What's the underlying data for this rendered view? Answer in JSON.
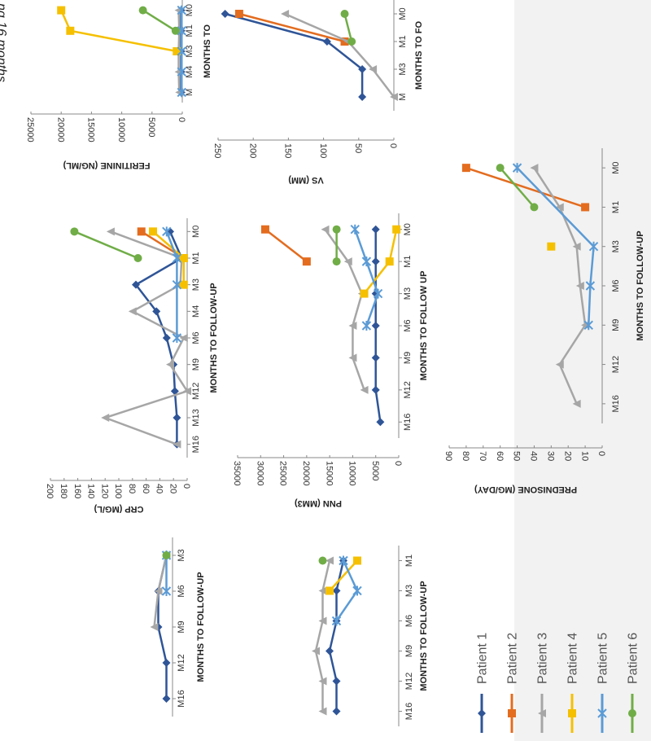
{
  "caption": "ng 16 months.",
  "colors": {
    "Patient 1": "#2f5597",
    "Patient 2": "#e36c1f",
    "Patient 3": "#a6a6a6",
    "Patient 4": "#f5c000",
    "Patient 5": "#5b9bd5",
    "Patient 6": "#70ad47"
  },
  "legend": [
    "Patient 1",
    "Patient 2",
    "Patient 3",
    "Patient 4",
    "Patient 5",
    "Patient 6"
  ],
  "chart_data": [
    {
      "id": "crp",
      "type": "line",
      "ylabel": "CRP (MG/L)",
      "xlabel": "MONTHS TO FOLLOW-UP",
      "categories": [
        "M0",
        "M1",
        "M3",
        "M4",
        "M6",
        "M9",
        "M12",
        "M13",
        "M16"
      ],
      "ylim": [
        0,
        200
      ],
      "yticks": [
        0,
        20,
        40,
        60,
        80,
        100,
        120,
        140,
        160,
        180,
        200
      ],
      "series": [
        {
          "name": "Patient 1",
          "values": [
            25,
            8,
            75,
            45,
            30,
            20,
            18,
            15,
            15
          ]
        },
        {
          "name": "Patient 2",
          "values": [
            67,
            5,
            null,
            null,
            null,
            null,
            null,
            null,
            null
          ]
        },
        {
          "name": "Patient 3",
          "values": [
            112,
            8,
            10,
            80,
            5,
            25,
            0,
            120,
            15
          ]
        },
        {
          "name": "Patient 4",
          "values": [
            50,
            5,
            5,
            null,
            null,
            null,
            null,
            null,
            null
          ]
        },
        {
          "name": "Patient 5",
          "values": [
            30,
            15,
            15,
            null,
            15,
            null,
            null,
            null,
            null
          ]
        },
        {
          "name": "Patient 6",
          "values": [
            165,
            72,
            null,
            null,
            null,
            null,
            null,
            null,
            null
          ]
        }
      ]
    },
    {
      "id": "ferritin",
      "type": "line",
      "ylabel": "FERITININE (NG/ML)",
      "xlabel": "MONTHS TO",
      "categories": [
        "M0",
        "M1",
        "M3",
        "M4",
        "M"
      ],
      "ylim": [
        0,
        25000
      ],
      "yticks": [
        0,
        5000,
        10000,
        15000,
        20000,
        25000
      ],
      "series": [
        {
          "name": "Patient 1",
          "values": [
            200,
            200,
            200,
            200,
            200
          ]
        },
        {
          "name": "Patient 3",
          "values": [
            600,
            500,
            600,
            600,
            500
          ]
        },
        {
          "name": "Patient 4",
          "values": [
            20000,
            18500,
            900,
            null,
            null
          ]
        },
        {
          "name": "Patient 5",
          "values": [
            100,
            100,
            100,
            100,
            100
          ]
        },
        {
          "name": "Patient 6",
          "values": [
            6500,
            1100,
            null,
            null,
            null
          ]
        }
      ]
    },
    {
      "id": "pnn",
      "type": "line",
      "ylabel": "PNN (MM3)",
      "xlabel": "MONTHS TO FOLLOW UP",
      "categories": [
        "M0",
        "M1",
        "M3",
        "M6",
        "M9",
        "M12",
        "M16"
      ],
      "ylim": [
        0,
        35000
      ],
      "yticks": [
        0,
        5000,
        10000,
        15000,
        20000,
        25000,
        30000,
        35000
      ],
      "series": [
        {
          "name": "Patient 1",
          "values": [
            5000,
            5000,
            5000,
            5000,
            5000,
            5000,
            4000
          ]
        },
        {
          "name": "Patient 2",
          "values": [
            29000,
            20000,
            null,
            null,
            null,
            null,
            null
          ]
        },
        {
          "name": "Patient 3",
          "values": [
            16000,
            11000,
            8000,
            10000,
            10000,
            7500,
            null
          ]
        },
        {
          "name": "Patient 4",
          "values": [
            500,
            2000,
            7500,
            null,
            null,
            null,
            null
          ]
        },
        {
          "name": "Patient 5",
          "values": [
            9500,
            7000,
            4500,
            7000,
            null,
            null,
            null
          ]
        },
        {
          "name": "Patient 6",
          "values": [
            13500,
            13500,
            null,
            null,
            null,
            null,
            null
          ]
        }
      ]
    },
    {
      "id": "vs",
      "type": "line",
      "ylabel": "VS (MM)",
      "xlabel": "MONTHS TO FO",
      "categories": [
        "M0",
        "M1",
        "M3",
        "M"
      ],
      "ylim": [
        0,
        250
      ],
      "yticks": [
        0,
        50,
        100,
        150,
        200,
        250
      ],
      "series": [
        {
          "name": "Patient 1",
          "values": [
            240,
            95,
            45,
            45
          ]
        },
        {
          "name": "Patient 2",
          "values": [
            220,
            70,
            null,
            null
          ]
        },
        {
          "name": "Patient 3",
          "values": [
            155,
            65,
            30,
            0
          ]
        },
        {
          "name": "Patient 6",
          "values": [
            70,
            60,
            null,
            null
          ]
        }
      ]
    },
    {
      "id": "pred",
      "type": "line",
      "ylabel": "PREDNISONE (MG/DAY)",
      "xlabel": "MONTHS TO FOLLOW-UP",
      "categories": [
        "M0",
        "M1",
        "M3",
        "M6",
        "M9",
        "M12",
        "M16"
      ],
      "ylim": [
        0,
        90
      ],
      "yticks": [
        0,
        10,
        20,
        30,
        40,
        50,
        60,
        70,
        80,
        90
      ],
      "series": [
        {
          "name": "Patient 2",
          "values": [
            80,
            10,
            null,
            null,
            null,
            null,
            null
          ]
        },
        {
          "name": "Patient 3",
          "values": [
            40,
            25,
            15,
            13,
            10,
            25,
            15
          ]
        },
        {
          "name": "Patient 4",
          "values": [
            null,
            null,
            30,
            null,
            null,
            null,
            null
          ]
        },
        {
          "name": "Patient 5",
          "values": [
            50,
            null,
            5,
            7,
            8,
            null,
            null
          ]
        },
        {
          "name": "Patient 6",
          "values": [
            60,
            40,
            null,
            null,
            null,
            null,
            null
          ]
        }
      ]
    },
    {
      "id": "topleft",
      "type": "line",
      "ylabel": "",
      "xlabel": "MONTHS TO FOLLOW-UP",
      "categories": [
        "M3",
        "M6",
        "M9",
        "M12",
        "M16"
      ],
      "ylim": [
        0,
        100
      ],
      "yticks": [],
      "series": [
        {
          "name": "Patient 1",
          "values": [
            15,
            35,
            35,
            15,
            15
          ]
        },
        {
          "name": "Patient 3",
          "values": [
            15,
            35,
            45,
            null,
            null
          ]
        },
        {
          "name": "Patient 5",
          "values": [
            15,
            15,
            null,
            null,
            null
          ]
        },
        {
          "name": "Patient 6",
          "values": [
            15,
            null,
            null,
            null,
            null
          ]
        }
      ]
    },
    {
      "id": "bottomleft",
      "type": "line",
      "ylabel": "",
      "xlabel": "MONTHS TO FOLLOW-UP",
      "categories": [
        "M1",
        "M3",
        "M6",
        "M9",
        "M12",
        "M16"
      ],
      "ylim": [
        0,
        100
      ],
      "yticks": [],
      "series": [
        {
          "name": "Patient 1",
          "values": [
            40,
            45,
            45,
            50,
            45,
            45
          ]
        },
        {
          "name": "Patient 3",
          "values": [
            50,
            55,
            55,
            60,
            55,
            55
          ]
        },
        {
          "name": "Patient 4",
          "values": [
            30,
            50,
            null,
            null,
            null,
            null
          ]
        },
        {
          "name": "Patient 5",
          "values": [
            40,
            30,
            45,
            null,
            null,
            null
          ]
        },
        {
          "name": "Patient 6",
          "values": [
            55,
            null,
            null,
            null,
            null,
            null
          ]
        }
      ]
    }
  ]
}
